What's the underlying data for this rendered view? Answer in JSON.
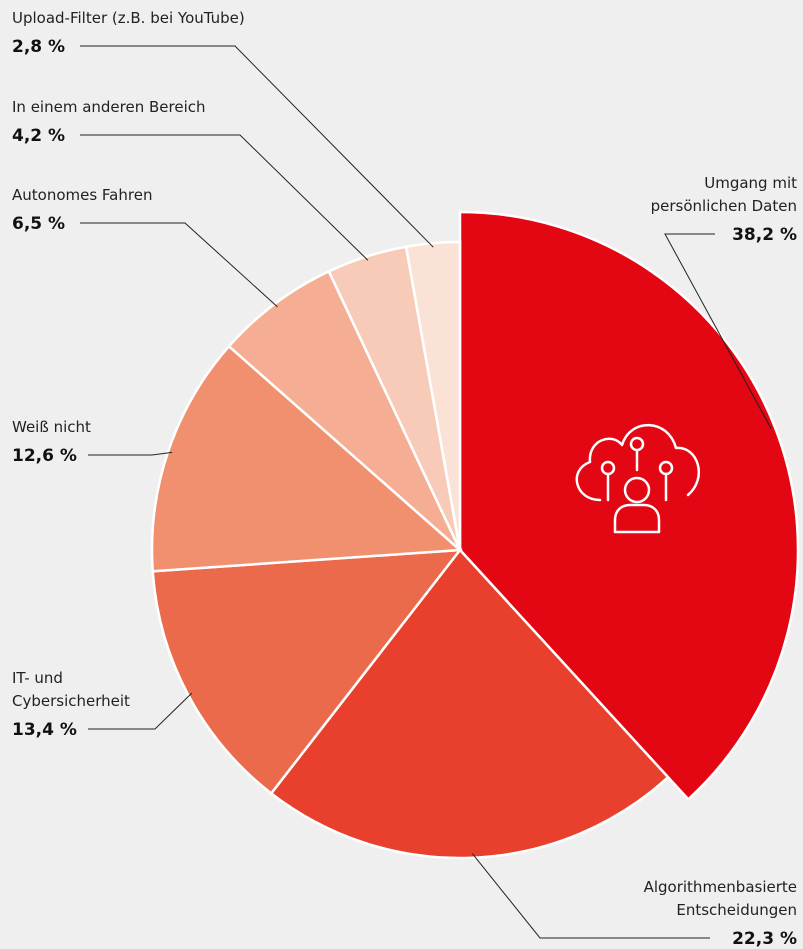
{
  "chart_data": {
    "type": "pie",
    "categories": [
      "Umgang mit\npersönlichen Daten",
      "Algorithmenbasierte\nEntscheidungen",
      "IT- und\nCybersicherheit",
      "Weiß nicht",
      "Autonomes Fahren",
      "In einem anderen Bereich",
      "Upload-Filter (z.B. bei YouTube)"
    ],
    "values": [
      38.2,
      22.3,
      13.4,
      12.6,
      6.5,
      4.2,
      2.8
    ],
    "value_labels": [
      "38,2 %",
      "22,3 %",
      "13,4 %",
      "12,6 %",
      "6,5 %",
      "4,2 %",
      "2,8 %"
    ],
    "colors": [
      "#e30613",
      "#e8402c",
      "#ec6a4c",
      "#f0906f",
      "#f5ae94",
      "#f8cbb9",
      "#fbe2d7"
    ]
  }
}
